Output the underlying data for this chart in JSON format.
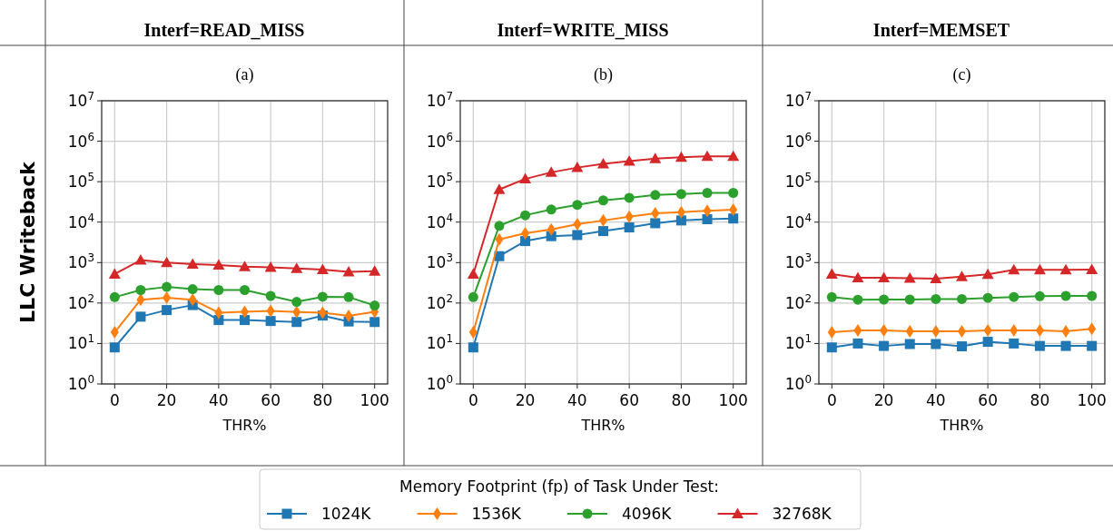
{
  "chart_data": [
    {
      "type": "line",
      "title": "Interf=READ_MISS",
      "subtitle": "(a)",
      "xlabel": "THR%",
      "ylabel": "LLC Writeback",
      "legend_title": "Memory Footprint (fp) of Task Under Test:",
      "legend": "bottom",
      "log": "y",
      "grid": true,
      "xlim": [
        -5,
        105
      ],
      "xticks": [
        0,
        20,
        40,
        60,
        80,
        100
      ],
      "ylim": [
        1,
        10000000
      ],
      "yticks": [
        {
          "value": 1,
          "label": "10$^{0}$"
        },
        {
          "value": 10,
          "label": "10$^{1}$"
        },
        {
          "value": 100,
          "label": "10$^{2}$"
        },
        {
          "value": 1000,
          "label": "10$^{3}$"
        },
        {
          "value": 10000,
          "label": "10$^{4}$"
        },
        {
          "value": 100000,
          "label": "10$^{5}$"
        },
        {
          "value": 1000000,
          "label": "10$^{6}$"
        },
        {
          "value": 10000000,
          "label": "10$^{7}$"
        }
      ],
      "x": [
        0,
        10,
        20,
        30,
        40,
        50,
        60,
        70,
        80,
        90,
        100
      ],
      "series": [
        {
          "name": "1024K",
          "color": "#1f77b4",
          "marker": "square",
          "values": [
            8,
            46,
            67,
            89,
            38,
            38,
            36,
            34,
            49,
            35,
            34
          ]
        },
        {
          "name": "1536K",
          "color": "#ff7f0e",
          "marker": "diamond",
          "values": [
            19,
            121,
            136,
            121,
            58,
            61,
            64,
            60,
            58,
            48,
            61
          ]
        },
        {
          "name": "4096K",
          "color": "#2ca02c",
          "marker": "circle",
          "values": [
            140,
            210,
            250,
            220,
            210,
            210,
            150,
            107,
            143,
            140,
            87
          ]
        },
        {
          "name": "32768K",
          "color": "#d62728",
          "marker": "triangle",
          "values": [
            520,
            1150,
            1000,
            920,
            870,
            790,
            760,
            720,
            670,
            590,
            610
          ]
        }
      ]
    },
    {
      "type": "line",
      "title": "Interf=WRITE_MISS",
      "subtitle": "(b)",
      "xlabel": "THR%",
      "log": "y",
      "grid": true,
      "xlim": [
        -5,
        105
      ],
      "xticks": [
        0,
        20,
        40,
        60,
        80,
        100
      ],
      "ylim": [
        1,
        10000000
      ],
      "yticks": [
        {
          "value": 1,
          "label": "10$^{0}$"
        },
        {
          "value": 10,
          "label": "10$^{1}$"
        },
        {
          "value": 100,
          "label": "10$^{2}$"
        },
        {
          "value": 1000,
          "label": "10$^{3}$"
        },
        {
          "value": 10000,
          "label": "10$^{4}$"
        },
        {
          "value": 100000,
          "label": "10$^{5}$"
        },
        {
          "value": 1000000,
          "label": "10$^{6}$"
        },
        {
          "value": 10000000,
          "label": "10$^{7}$"
        }
      ],
      "x": [
        0,
        10,
        20,
        30,
        40,
        50,
        60,
        70,
        80,
        90,
        100
      ],
      "series": [
        {
          "color": "#1f77b4",
          "marker": "square",
          "values": [
            8,
            1440,
            3400,
            4500,
            4800,
            6000,
            7400,
            9400,
            11000,
            11800,
            12300
          ]
        },
        {
          "color": "#ff7f0e",
          "marker": "diamond",
          "values": [
            19,
            3740,
            5300,
            6600,
            8900,
            11000,
            13600,
            16500,
            17700,
            19000,
            20300
          ]
        },
        {
          "color": "#2ca02c",
          "marker": "circle",
          "values": [
            140,
            8100,
            14800,
            20500,
            26700,
            34500,
            40000,
            46900,
            49500,
            52800,
            52800
          ]
        },
        {
          "color": "#d62728",
          "marker": "triangle",
          "values": [
            520,
            64000,
            117000,
            170000,
            223000,
            275000,
            323000,
            370000,
            400000,
            425000,
            420000
          ]
        }
      ]
    },
    {
      "type": "line",
      "title": "Interf=MEMSET",
      "subtitle": "(c)",
      "xlabel": "THR%",
      "log": "y",
      "grid": true,
      "xlim": [
        -5,
        105
      ],
      "xticks": [
        0,
        20,
        40,
        60,
        80,
        100
      ],
      "ylim": [
        1,
        10000000
      ],
      "yticks": [
        {
          "value": 1,
          "label": "10$^{0}$"
        },
        {
          "value": 10,
          "label": "10$^{1}$"
        },
        {
          "value": 100,
          "label": "10$^{2}$"
        },
        {
          "value": 1000,
          "label": "10$^{3}$"
        },
        {
          "value": 10000,
          "label": "10$^{4}$"
        },
        {
          "value": 100000,
          "label": "10$^{5}$"
        },
        {
          "value": 1000000,
          "label": "10$^{6}$"
        },
        {
          "value": 10000000,
          "label": "10$^{7}$"
        }
      ],
      "x": [
        0,
        10,
        20,
        30,
        40,
        50,
        60,
        70,
        80,
        90,
        100
      ],
      "series": [
        {
          "color": "#1f77b4",
          "marker": "square",
          "values": [
            8,
            10,
            8.7,
            9.7,
            9.7,
            8.5,
            11,
            10,
            8.7,
            8.7,
            8.7
          ]
        },
        {
          "color": "#ff7f0e",
          "marker": "diamond",
          "values": [
            19,
            21,
            21,
            20,
            20,
            20,
            21,
            21,
            21,
            20,
            23
          ]
        },
        {
          "color": "#2ca02c",
          "marker": "circle",
          "values": [
            140,
            121,
            122,
            122,
            126,
            126,
            134,
            141,
            148,
            150,
            150
          ]
        },
        {
          "color": "#d62728",
          "marker": "triangle",
          "values": [
            520,
            420,
            420,
            410,
            400,
            450,
            510,
            660,
            660,
            660,
            670
          ]
        }
      ]
    }
  ]
}
